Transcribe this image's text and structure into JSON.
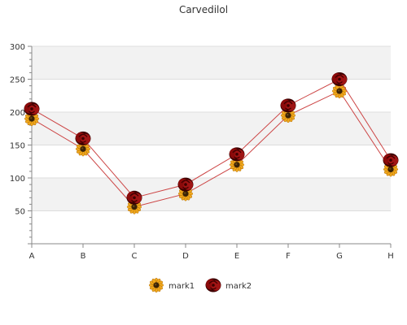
{
  "chart_data": {
    "type": "line",
    "title": "Carvedilol",
    "categories": [
      "A",
      "B",
      "C",
      "D",
      "E",
      "F",
      "G",
      "H"
    ],
    "series": [
      {
        "name": "mark1",
        "values": [
          190,
          144,
          56,
          76,
          120,
          195,
          232,
          113
        ]
      },
      {
        "name": "mark2",
        "values": [
          205,
          160,
          70,
          90,
          136,
          210,
          250,
          127
        ]
      }
    ],
    "ylim": [
      0,
      300
    ],
    "yticks": [
      50,
      100,
      150,
      200,
      250,
      300
    ],
    "grid": true,
    "legend_position": "bottom",
    "colors": {
      "line": "#cc4444",
      "band": "#f2f2f2",
      "grid": "#dddddd",
      "axis": "#888888",
      "mark1_petal": "#f0a81c",
      "mark1_center": "#3a2206",
      "mark2_body": "#8b0a0a",
      "mark2_dark": "#3d0000"
    },
    "markers": {
      "mark1": "sunflower-icon",
      "mark2": "rose-icon"
    }
  }
}
